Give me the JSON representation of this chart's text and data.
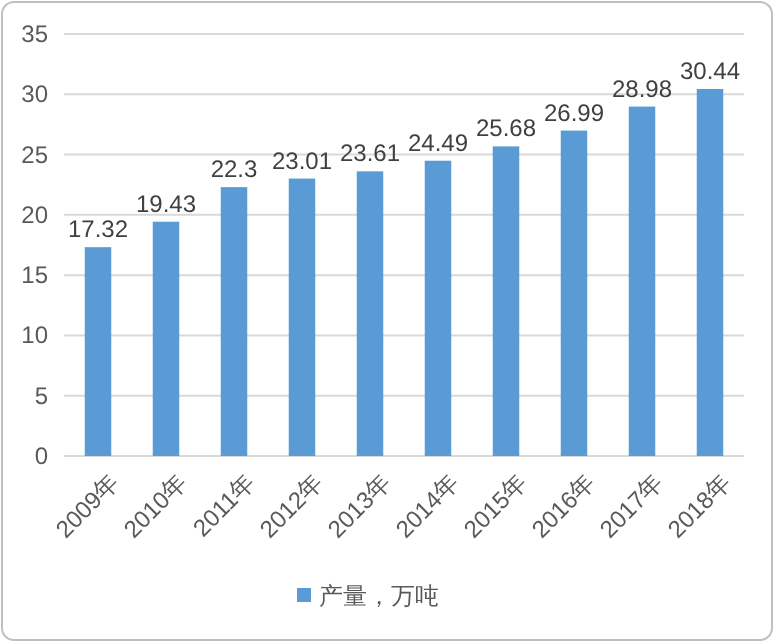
{
  "chart_data": {
    "type": "bar",
    "categories": [
      "2009年",
      "2010年",
      "2011年",
      "2012年",
      "2013年",
      "2014年",
      "2015年",
      "2016年",
      "2017年",
      "2018年"
    ],
    "series": [
      {
        "name": "产量，万吨",
        "color": "#5b9bd5",
        "values": [
          17.32,
          19.43,
          22.3,
          23.01,
          23.61,
          24.49,
          25.68,
          26.99,
          28.98,
          30.44
        ]
      }
    ],
    "ylim": [
      0,
      35
    ],
    "yticks": [
      0,
      5,
      10,
      15,
      20,
      25,
      30,
      35
    ],
    "grid": "y",
    "data_labels": true,
    "legend": "bottom"
  }
}
